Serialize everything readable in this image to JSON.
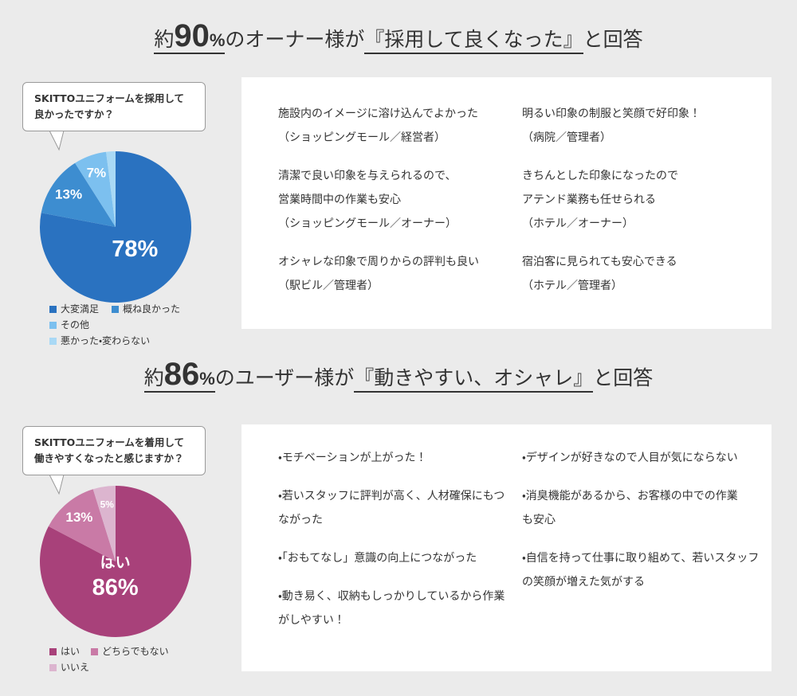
{
  "sections": [
    {
      "heading": [
        "約",
        "90",
        "%",
        "のオーナー様が",
        "『採用して良くなった』",
        "と回答"
      ],
      "comments": {
        "left": [
          [
            "施設内のイメージに溶け込んでよかった",
            "（ショッピングモール／経営者）"
          ],
          [
            "清潔で良い印象を与えられるので、",
            "営業時間中の作業も安心",
            "（ショッピングモール／オーナー）"
          ],
          [
            "オシャレな印象で周りからの評判も良い",
            "（駅ビル／管理者）"
          ]
        ],
        "right": [
          [
            "明るい印象の制服と笑顔で好印象！",
            "（病院／管理者）"
          ],
          [
            "きちんとした印象になったので",
            "アテンド業務も任せられる",
            "（ホテル／オーナー）"
          ],
          [
            "宿泊客に見られても安心できる",
            "（ホテル／管理者）"
          ]
        ]
      }
    },
    {
      "heading": [
        "約",
        "86",
        "%",
        "のユーザー様が",
        "『動きやすい、オシャレ』",
        "と回答"
      ],
      "comments": {
        "left": [
          [
            "・モチベーションが上がった！"
          ],
          [
            "・若いスタッフに評判が高く、人材確保にもつ",
            "ながった"
          ],
          [
            "・「おもてなし」意識の向上につながった"
          ],
          [
            "・動き易く、収納もしっかりしているから作業",
            "がしやすい！"
          ]
        ],
        "right": [
          [
            "・デザインが好きなので人目が気にならない"
          ],
          [
            "・消臭機能があるから、お客様の中での作業",
            "も安心"
          ],
          [
            "・自信を持って仕事に取り組めて、若いスタッフ",
            "の笑顔が増えた気がする"
          ]
        ]
      }
    }
  ],
  "chart_data": [
    {
      "type": "pie",
      "title": [
        "SKITTOユニフォームを採用して",
        "良かったですか？"
      ],
      "categories": [
        "大変満足",
        "概ね良かった",
        "その他",
        "悪かった・変わらない"
      ],
      "values": [
        78,
        13,
        7,
        2
      ],
      "value_labels": [
        "78%",
        "13%",
        "7%",
        null
      ],
      "colors": [
        "#2a72c0",
        "#3d8dd0",
        "#7cc0ef",
        "#a9d9f5"
      ]
    },
    {
      "type": "pie",
      "title": [
        "SKITTOユニフォームを着用して",
        "働きやすくなったと感じますか？"
      ],
      "categories": [
        "はい",
        "どちらでもない",
        "いいえ"
      ],
      "values": [
        86,
        13,
        5
      ],
      "value_labels": [
        "86%",
        "13%",
        "5%"
      ],
      "colors": [
        "#a8417a",
        "#c97aa6",
        "#dcb5cf"
      ]
    }
  ]
}
